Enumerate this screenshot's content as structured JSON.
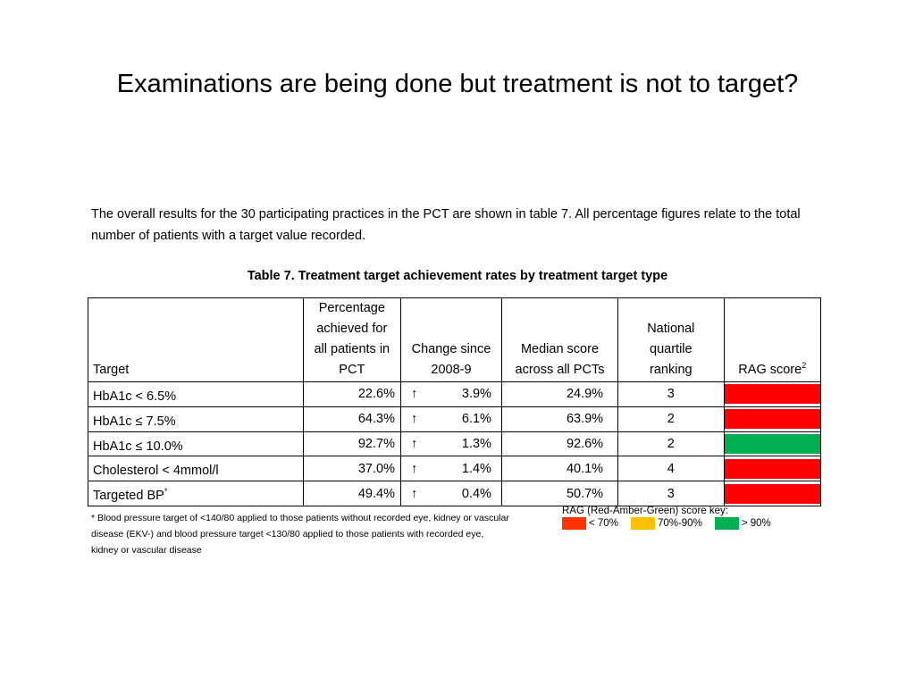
{
  "slide": {
    "title": "Examinations are being done but treatment is not to target?"
  },
  "intro": "The overall results for the 30 participating practices in the PCT are shown in table 7. All percentage figures relate to the total number of patients with a target value recorded.",
  "table": {
    "caption": "Table 7. Treatment target achievement rates by treatment target type",
    "headers": {
      "target": "Target",
      "pct_line1": "Percentage",
      "pct_line2": "achieved for",
      "pct_line3": "all patients in",
      "pct_line4": "PCT",
      "change_line1": "Change since",
      "change_line2": "2008-9",
      "median_line1": "Median score",
      "median_line2": "across all PCTs",
      "rank_line1": "National",
      "rank_line2": "quartile",
      "rank_line3": "ranking",
      "rag": "RAG score",
      "rag_sup": "2"
    },
    "rows": [
      {
        "target": "HbA1c < 6.5%",
        "target_sup": "",
        "pct": "22.6%",
        "arrow": "↑",
        "change": "3.9%",
        "median": "24.9%",
        "rank": "3",
        "rag_color": "#ff0000"
      },
      {
        "target": "HbA1c ≤ 7.5%",
        "target_sup": "",
        "pct": "64.3%",
        "arrow": "↑",
        "change": "6.1%",
        "median": "63.9%",
        "rank": "2",
        "rag_color": "#ff0000"
      },
      {
        "target": "HbA1c ≤ 10.0%",
        "target_sup": "",
        "pct": "92.7%",
        "arrow": "↑",
        "change": "1.3%",
        "median": "92.6%",
        "rank": "2",
        "rag_color": "#00b050"
      },
      {
        "target": "Cholesterol < 4mmol/l",
        "target_sup": "",
        "pct": "37.0%",
        "arrow": "↑",
        "change": "1.4%",
        "median": "40.1%",
        "rank": "4",
        "rag_color": "#ff0000"
      },
      {
        "target": "Targeted BP",
        "target_sup": "*",
        "pct": "49.4%",
        "arrow": "↑",
        "change": "0.4%",
        "median": "50.7%",
        "rank": "3",
        "rag_color": "#ff0000"
      }
    ]
  },
  "footnote": "* Blood pressure target of <140/80 applied to those patients without recorded eye, kidney or vascular disease (EKV-) and blood pressure target <130/80 applied to those patients with recorded eye, kidney or vascular disease",
  "key": {
    "title": "RAG (Red-Amber-Green) score key:",
    "items": [
      {
        "label": "< 70%",
        "color": "#ff3300"
      },
      {
        "label": "70%-90%",
        "color": "#ffc000"
      },
      {
        "label": "> 90%",
        "color": "#00b050"
      }
    ]
  }
}
